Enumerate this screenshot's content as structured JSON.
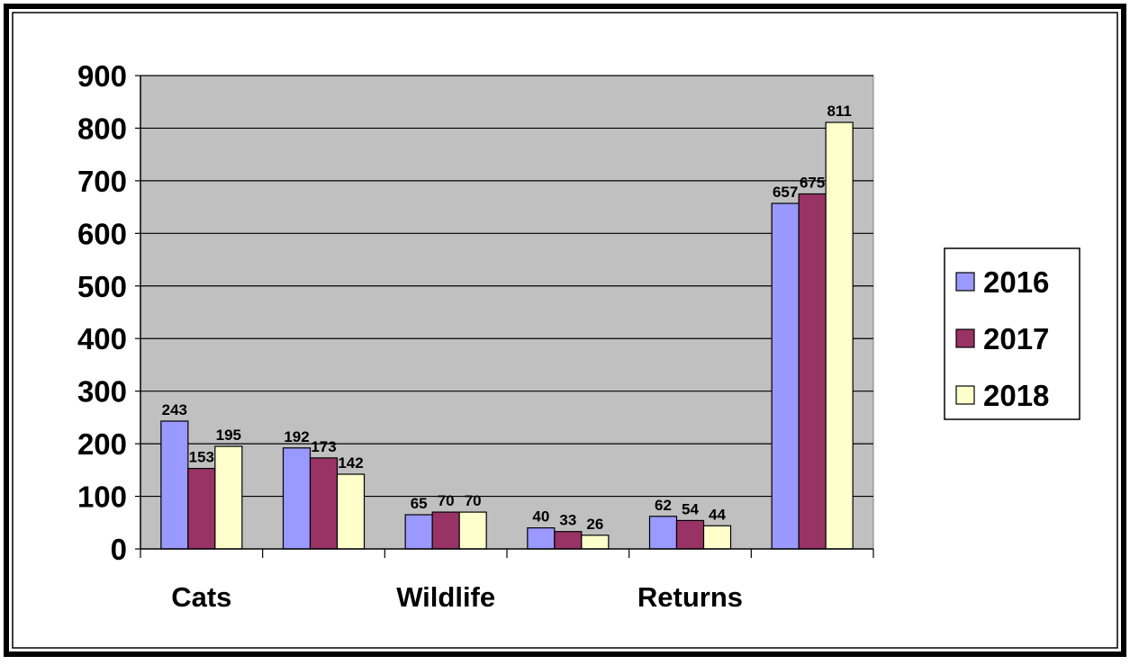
{
  "chart_data": {
    "type": "bar",
    "categories": [
      "Cats",
      "",
      "Wildlife",
      "",
      "Returns",
      ""
    ],
    "series": [
      {
        "name": "2016",
        "color": "#9999ff",
        "values": [
          243,
          192,
          65,
          40,
          62,
          657
        ]
      },
      {
        "name": "2017",
        "color": "#993366",
        "values": [
          153,
          173,
          70,
          33,
          54,
          675
        ]
      },
      {
        "name": "2018",
        "color": "#ffffcc",
        "values": [
          195,
          142,
          70,
          26,
          44,
          811
        ]
      }
    ],
    "data_labels": [
      [
        "243",
        "192",
        "65",
        "40",
        "62",
        "657"
      ],
      [
        "153",
        "173",
        "70",
        "33",
        "54",
        "675"
      ],
      [
        "195",
        "142",
        "70",
        "26",
        "44",
        "811"
      ]
    ],
    "y_ticks": [
      "0",
      "100",
      "200",
      "300",
      "400",
      "500",
      "600",
      "700",
      "800",
      "900"
    ],
    "ylim": [
      0,
      900
    ],
    "grid": true,
    "plot_background": "#c0c0c0",
    "legend_position": "right",
    "title": "",
    "xlabel": "",
    "ylabel": ""
  }
}
